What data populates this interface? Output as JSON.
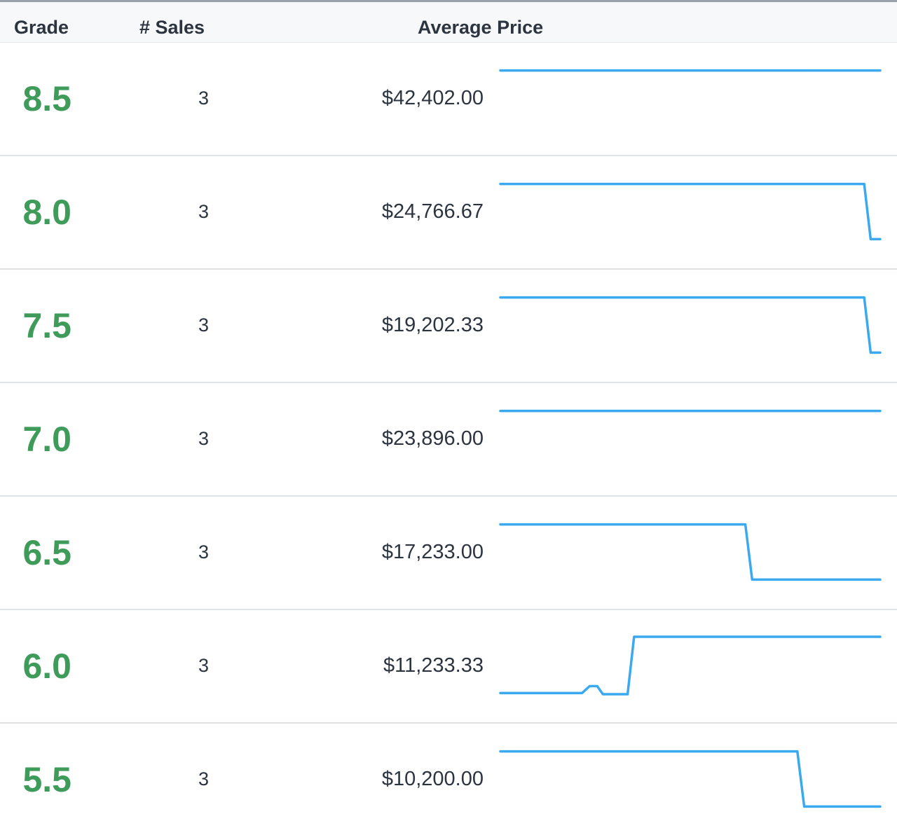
{
  "header": {
    "grade_label": "Grade",
    "sales_label": "# Sales",
    "price_label": "Average Price"
  },
  "colors": {
    "grade": "#3f9b5a",
    "sparkline": "#3aa9ef"
  },
  "rows": [
    {
      "grade": "8.5",
      "sales": "3",
      "price": "$42,402.00",
      "trend": [
        [
          0,
          0.98
        ],
        [
          1,
          0.98
        ]
      ]
    },
    {
      "grade": "8.0",
      "sales": "3",
      "price": "$24,766.67",
      "trend": [
        [
          0,
          0.98
        ],
        [
          0.958,
          0.98
        ],
        [
          0.975,
          0.02
        ],
        [
          1,
          0.02
        ]
      ]
    },
    {
      "grade": "7.5",
      "sales": "3",
      "price": "$19,202.33",
      "trend": [
        [
          0,
          0.98
        ],
        [
          0.958,
          0.98
        ],
        [
          0.975,
          0.02
        ],
        [
          1,
          0.02
        ]
      ]
    },
    {
      "grade": "7.0",
      "sales": "3",
      "price": "$23,896.00",
      "trend": [
        [
          0,
          0.98
        ],
        [
          1,
          0.98
        ]
      ]
    },
    {
      "grade": "6.5",
      "sales": "3",
      "price": "$17,233.00",
      "trend": [
        [
          0,
          0.98
        ],
        [
          0.645,
          0.98
        ],
        [
          0.663,
          0.02
        ],
        [
          1,
          0.02
        ]
      ]
    },
    {
      "grade": "6.0",
      "sales": "3",
      "price": "$11,233.33",
      "trend": [
        [
          0,
          0.02
        ],
        [
          0.215,
          0.02
        ],
        [
          0.235,
          0.14
        ],
        [
          0.255,
          0.14
        ],
        [
          0.27,
          0.0
        ],
        [
          0.335,
          0.0
        ],
        [
          0.352,
          1.0
        ],
        [
          1,
          1.0
        ]
      ]
    },
    {
      "grade": "5.5",
      "sales": "3",
      "price": "$10,200.00",
      "trend": [
        [
          0,
          0.98
        ],
        [
          0.782,
          0.98
        ],
        [
          0.8,
          0.02
        ],
        [
          1,
          0.02
        ]
      ]
    }
  ]
}
